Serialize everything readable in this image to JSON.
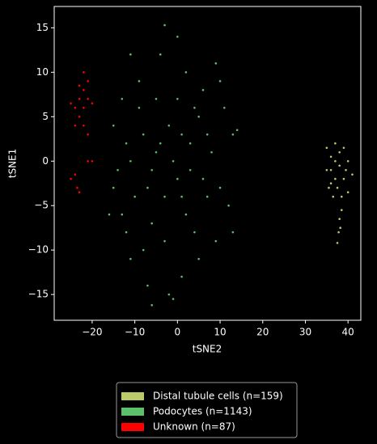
{
  "chart_data": {
    "type": "scatter",
    "xlabel": "tSNE2",
    "ylabel": "tSNE1",
    "xlim": [
      -28.9,
      43.0
    ],
    "ylim": [
      -17.9,
      17.4
    ],
    "xticks": [
      {
        "value": -20,
        "label": "−20"
      },
      {
        "value": -10,
        "label": "−10"
      },
      0,
      10,
      20,
      30,
      40
    ],
    "yticks": [
      {
        "value": -15,
        "label": "−15"
      },
      {
        "value": -10,
        "label": "−10"
      },
      {
        "value": -5,
        "label": "−5"
      },
      0,
      5,
      10,
      15
    ],
    "legend": "below",
    "series": [
      {
        "name": "Distal tubule cells (n=159)",
        "color": "#bcc96a",
        "x": [
          35,
          36,
          37,
          38,
          39,
          40,
          41,
          36,
          37,
          38,
          39,
          40,
          35.5,
          36.5,
          37.5,
          38.5,
          39.5,
          36,
          37,
          38,
          38.2,
          37.8,
          37.5,
          38.5,
          35
        ],
        "values": [
          1.5,
          0.5,
          2,
          1,
          1.5,
          0,
          -1.5,
          -1,
          -2,
          -0.5,
          -2,
          -3.5,
          -3,
          -4,
          -3,
          -4,
          -1,
          -2.5,
          0,
          -6.5,
          -7.5,
          -8,
          -9.2,
          -5.5,
          -1
        ]
      },
      {
        "name": "Podocytes (n=1143)",
        "color": "#5cbf6a",
        "x": [
          -8,
          -5,
          -2,
          0,
          3,
          -10,
          -6,
          2,
          5,
          8,
          10,
          -12,
          -14,
          -13,
          -9,
          -4,
          0,
          -3,
          2,
          6,
          9,
          11,
          13,
          12,
          13,
          9,
          5,
          1,
          -2,
          -7,
          -11,
          -12,
          -15,
          -15,
          -13,
          -8,
          -3,
          4,
          7,
          3,
          -1,
          -6,
          -11,
          -9,
          -5,
          0,
          4,
          7,
          -3,
          1,
          -7,
          -4,
          1,
          6,
          -16,
          -6,
          -1,
          10,
          -11,
          14
        ],
        "values": [
          3,
          1,
          4,
          -2,
          2,
          -4,
          -7,
          -6,
          5,
          1,
          -3,
          2,
          -1,
          -6,
          9,
          12,
          14,
          15.3,
          10,
          8,
          11,
          6,
          3,
          -5,
          -8,
          -9,
          -11,
          -13,
          -15,
          -14,
          -11,
          -8,
          -3,
          4,
          7,
          -10,
          -9,
          -8,
          -4,
          -1,
          0,
          -1,
          0,
          6,
          7,
          7,
          6,
          3,
          -4,
          -4,
          -3,
          2,
          3,
          -2,
          -6,
          -16.2,
          -15.5,
          9,
          12,
          3.5
        ]
      },
      {
        "name": "Unknown (n=87)",
        "color": "#ff0000",
        "x": [
          -24,
          -23,
          -22,
          -21,
          -22,
          -23,
          -24,
          -25,
          -22,
          -21,
          -20,
          -23,
          -22,
          -21,
          -24,
          -23.5,
          -23,
          -25,
          -21,
          -20
        ],
        "values": [
          6,
          7,
          8,
          9,
          10,
          5,
          4,
          6.5,
          6,
          7,
          6.5,
          8.5,
          4,
          3,
          -1.5,
          -3,
          -3.5,
          -2,
          0,
          0
        ]
      }
    ]
  }
}
